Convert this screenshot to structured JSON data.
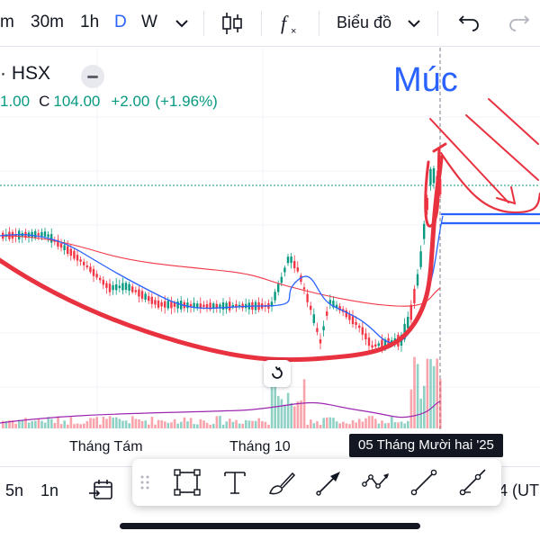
{
  "toolbar": {
    "intervals": [
      {
        "label": "m",
        "active": false
      },
      {
        "label": "30m",
        "active": false
      },
      {
        "label": "1h",
        "active": false
      },
      {
        "label": "D",
        "active": true
      },
      {
        "label": "W",
        "active": false
      }
    ],
    "chart_type_label": "Biểu đồ",
    "icons": [
      "chevron-down-icon",
      "candlestick-icon",
      "indicator-fx-icon",
      "undo-icon",
      "redo-icon"
    ]
  },
  "legend": {
    "symbol": "· HSX",
    "open_fragment": "1.00",
    "close_prefix": "C",
    "close_value": "104.00",
    "change": "+2.00",
    "change_pct": "(+1.96%)"
  },
  "annotation": {
    "text": "Múc",
    "text_color": "#2962ff",
    "drawing_color": "#e8323f"
  },
  "time_axis": {
    "labels": [
      "Tháng Tám",
      "Tháng 10"
    ],
    "crosshair_date": "05 Tháng Mười hai '25"
  },
  "bottom_bar": {
    "ranges": [
      "5n",
      "1n"
    ],
    "right_text": "4 (UT"
  },
  "colors": {
    "up": "#089981",
    "down": "#f23645",
    "ma_blue": "#2962ff",
    "ma_red": "#f23645",
    "volume_ma": "#9c27b0"
  }
}
